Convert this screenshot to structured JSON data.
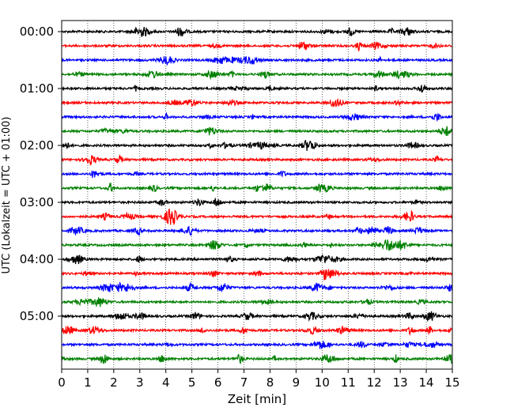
{
  "chart_data": {
    "type": "line",
    "title": "",
    "xlabel": "Zeit  [min]",
    "ylabel": "UTC (Lokalzeit = UTC + 01:00)",
    "xlim": [
      0,
      15
    ],
    "x_ticks": [
      "0",
      "1",
      "2",
      "3",
      "4",
      "5",
      "6",
      "7",
      "8",
      "9",
      "10",
      "11",
      "12",
      "13",
      "14",
      "15"
    ],
    "y_tick_labels": [
      "00:00",
      "01:00",
      "02:00",
      "03:00",
      "04:00",
      "05:00"
    ],
    "grid": "vertical dotted",
    "traces_per_hour": 4,
    "trace_minutes": 15,
    "traces": [
      {
        "label": "00:00",
        "color": "#000000"
      },
      {
        "label": "00:15",
        "color": "#ff0000"
      },
      {
        "label": "00:30",
        "color": "#0000ff"
      },
      {
        "label": "00:45",
        "color": "#008000"
      },
      {
        "label": "01:00",
        "color": "#000000"
      },
      {
        "label": "01:15",
        "color": "#ff0000"
      },
      {
        "label": "01:30",
        "color": "#0000ff"
      },
      {
        "label": "01:45",
        "color": "#008000"
      },
      {
        "label": "02:00",
        "color": "#000000"
      },
      {
        "label": "02:15",
        "color": "#ff0000"
      },
      {
        "label": "02:30",
        "color": "#0000ff"
      },
      {
        "label": "02:45",
        "color": "#008000"
      },
      {
        "label": "03:00",
        "color": "#000000"
      },
      {
        "label": "03:15",
        "color": "#ff0000"
      },
      {
        "label": "03:30",
        "color": "#0000ff"
      },
      {
        "label": "03:45",
        "color": "#008000"
      },
      {
        "label": "04:00",
        "color": "#000000"
      },
      {
        "label": "04:15",
        "color": "#ff0000"
      },
      {
        "label": "04:30",
        "color": "#0000ff"
      },
      {
        "label": "04:45",
        "color": "#008000"
      },
      {
        "label": "05:00",
        "color": "#000000"
      },
      {
        "label": "05:15",
        "color": "#ff0000"
      },
      {
        "label": "05:30",
        "color": "#0000ff"
      },
      {
        "label": "05:45",
        "color": "#008000"
      }
    ]
  }
}
